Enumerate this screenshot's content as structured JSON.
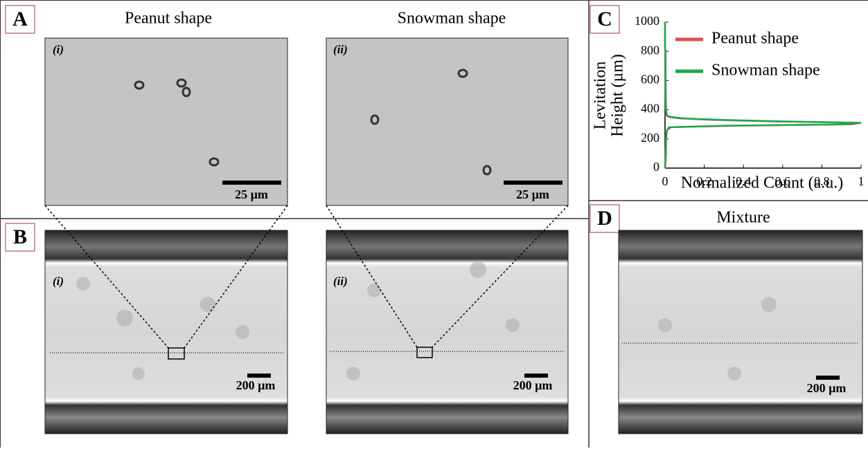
{
  "panels": {
    "A": {
      "label": "A",
      "titles": [
        "Peanut shape",
        "Snowman shape"
      ],
      "images": [
        {
          "tag": "(i)",
          "scale": "25 µm"
        },
        {
          "tag": "(ii)",
          "scale": "25 µm"
        }
      ]
    },
    "B": {
      "label": "B",
      "images": [
        {
          "tag": "(i)",
          "scale": "200 µm"
        },
        {
          "tag": "(ii)",
          "scale": "200 µm"
        }
      ]
    },
    "C": {
      "label": "C"
    },
    "D": {
      "label": "D",
      "title": "Mixture",
      "scale": "200 µm"
    }
  },
  "chart_data": {
    "type": "line",
    "x_label": "Normalized Count (a.u.)",
    "y_label": [
      "Levitation",
      "Height (µm)"
    ],
    "y": [
      0,
      100,
      200,
      260,
      280,
      290,
      300,
      310,
      320,
      330,
      340,
      350,
      360,
      400,
      600,
      800,
      820,
      1000
    ],
    "series": [
      {
        "name": "Peanut shape",
        "color": "#d9534f",
        "values": [
          0,
          0.003,
          0.005,
          0.01,
          0.03,
          0.35,
          0.95,
          1,
          0.55,
          0.25,
          0.08,
          0.02,
          0.008,
          0.004,
          0.002,
          0.001,
          0,
          0
        ]
      },
      {
        "name": "Snowman shape",
        "color": "#1aaa4b",
        "values": [
          0,
          0.005,
          0.005,
          0.01,
          0.02,
          0.3,
          0.9,
          1,
          0.6,
          0.3,
          0.1,
          0.03,
          0.01,
          0.005,
          0.003,
          0.003,
          0,
          0
        ]
      }
    ],
    "xlim": [
      0,
      1
    ],
    "xticks": [
      0,
      0.2,
      0.4,
      0.6,
      0.8,
      1
    ],
    "ylim": [
      0,
      1000
    ],
    "yticks": [
      0,
      200,
      400,
      600,
      800,
      1000
    ]
  }
}
